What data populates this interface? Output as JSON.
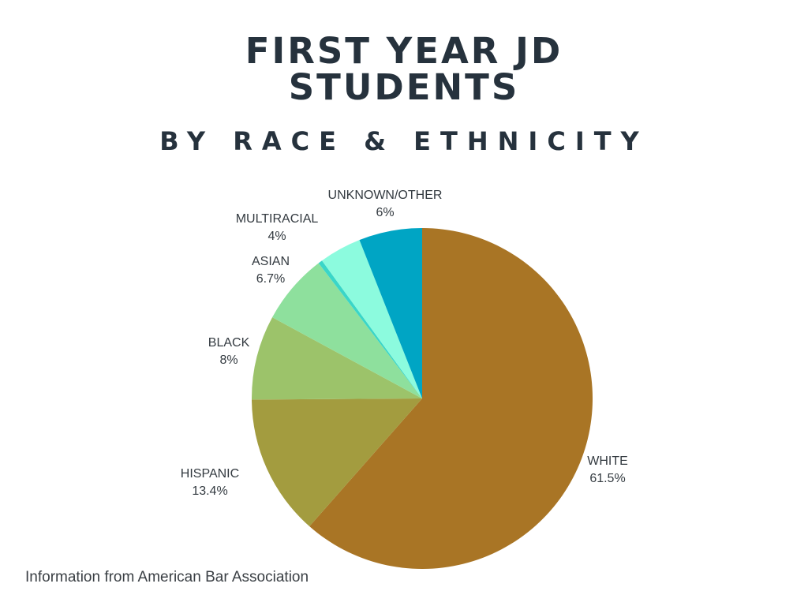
{
  "chart_data": {
    "type": "pie",
    "title_lines": [
      "FIRST YEAR JD",
      "STUDENTS"
    ],
    "subtitle": "BY RACE & ETHNICITY",
    "categories": [
      "WHITE",
      "HISPANIC",
      "BLACK",
      "ASIAN",
      "",
      "MULTIRACIAL",
      "UNKNOWN/OTHER"
    ],
    "values": [
      61.5,
      13.4,
      8,
      6.7,
      0.4,
      4,
      6
    ],
    "value_labels": [
      "61.5%",
      "13.4%",
      "8%",
      "6.7%",
      "",
      "4%",
      "6%"
    ],
    "colors": [
      "#a97525",
      "#a39c3f",
      "#9cc36a",
      "#8ee09d",
      "#3ad6c8",
      "#8cfbde",
      "#00a5c4"
    ],
    "start_angle": "12 o'clock",
    "direction": "clockwise"
  },
  "source": "Information from American Bar Association"
}
